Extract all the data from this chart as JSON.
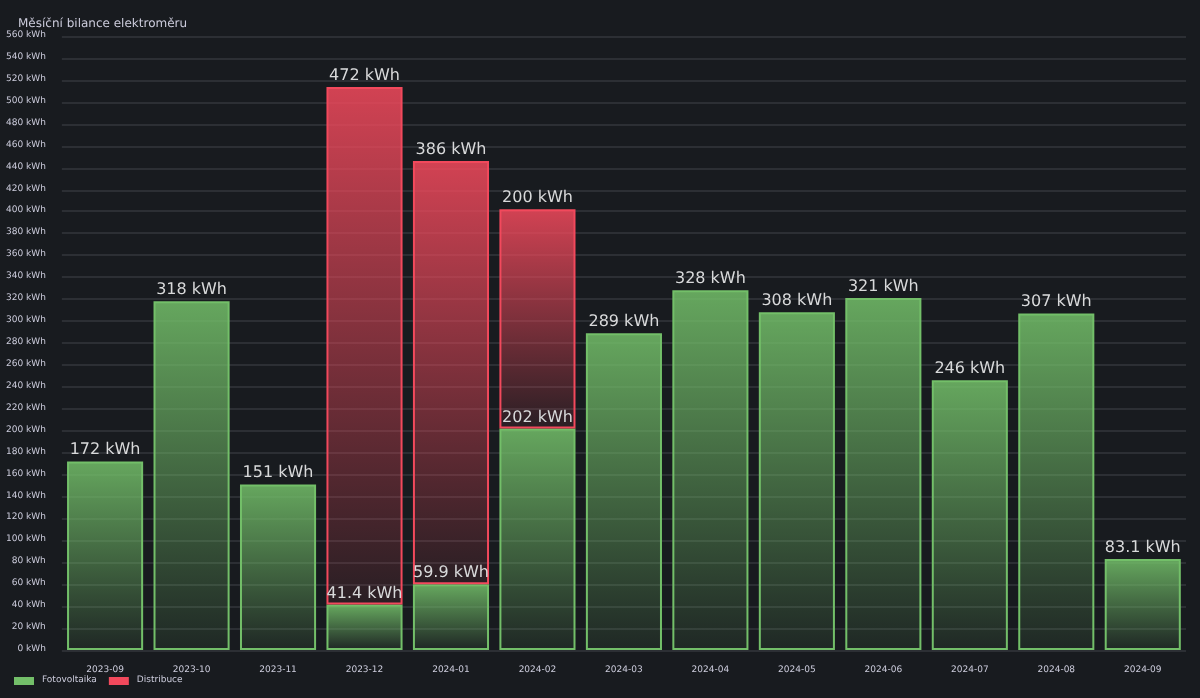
{
  "chart_data": {
    "type": "bar",
    "title": "Měsíční bilance elektroměru",
    "stacked": true,
    "categories": [
      "2023-09",
      "2023-10",
      "2023-11",
      "2023-12",
      "2024-01",
      "2024-02",
      "2024-03",
      "2024-04",
      "2024-05",
      "2024-06",
      "2024-07",
      "2024-08",
      "2024-09"
    ],
    "series": [
      {
        "name": "Fotovoltaika",
        "color": "#73bf69",
        "values": [
          172,
          318,
          151,
          41.4,
          59.9,
          202,
          289,
          328,
          308,
          321,
          246,
          307,
          83.1
        ],
        "value_labels": [
          "172 kWh",
          "318 kWh",
          "151 kWh",
          "41.4 kWh",
          "59.9 kWh",
          "202 kWh",
          "289 kWh",
          "328 kWh",
          "308 kWh",
          "321 kWh",
          "246 kWh",
          "307 kWh",
          "83.1 kWh"
        ]
      },
      {
        "name": "Distribuce",
        "color": "#f2495c",
        "values": [
          null,
          null,
          null,
          472,
          386,
          200,
          null,
          null,
          null,
          null,
          null,
          null,
          null
        ],
        "value_labels": [
          null,
          null,
          null,
          "472 kWh",
          "386 kWh",
          "200 kWh",
          null,
          null,
          null,
          null,
          null,
          null,
          null
        ]
      }
    ],
    "ylim": [
      0,
      560
    ],
    "yticks": [
      {
        "value": 0,
        "label": "0 kWh"
      },
      {
        "value": 20,
        "label": "20 kWh"
      },
      {
        "value": 40,
        "label": "40 kWh"
      },
      {
        "value": 60,
        "label": "60 kWh"
      },
      {
        "value": 80,
        "label": "80 kWh"
      },
      {
        "value": 100,
        "label": "100 kWh"
      },
      {
        "value": 120,
        "label": "120 kWh"
      },
      {
        "value": 140,
        "label": "140 kWh"
      },
      {
        "value": 160,
        "label": "160 kWh"
      },
      {
        "value": 180,
        "label": "180 kWh"
      },
      {
        "value": 200,
        "label": "200 kWh"
      },
      {
        "value": 220,
        "label": "220 kWh"
      },
      {
        "value": 240,
        "label": "240 kWh"
      },
      {
        "value": 260,
        "label": "260 kWh"
      },
      {
        "value": 280,
        "label": "280 kWh"
      },
      {
        "value": 300,
        "label": "300 kWh"
      },
      {
        "value": 320,
        "label": "320 kWh"
      },
      {
        "value": 340,
        "label": "340 kWh"
      },
      {
        "value": 360,
        "label": "360 kWh"
      },
      {
        "value": 380,
        "label": "380 kWh"
      },
      {
        "value": 400,
        "label": "400 kWh"
      },
      {
        "value": 420,
        "label": "420 kWh"
      },
      {
        "value": 440,
        "label": "440 kWh"
      },
      {
        "value": 460,
        "label": "460 kWh"
      },
      {
        "value": 480,
        "label": "480 kWh"
      },
      {
        "value": 500,
        "label": "500 kWh"
      },
      {
        "value": 520,
        "label": "520 kWh"
      },
      {
        "value": 540,
        "label": "540 kWh"
      },
      {
        "value": 560,
        "label": "560 kWh"
      }
    ],
    "grid": "y",
    "legend": "bottom left"
  }
}
